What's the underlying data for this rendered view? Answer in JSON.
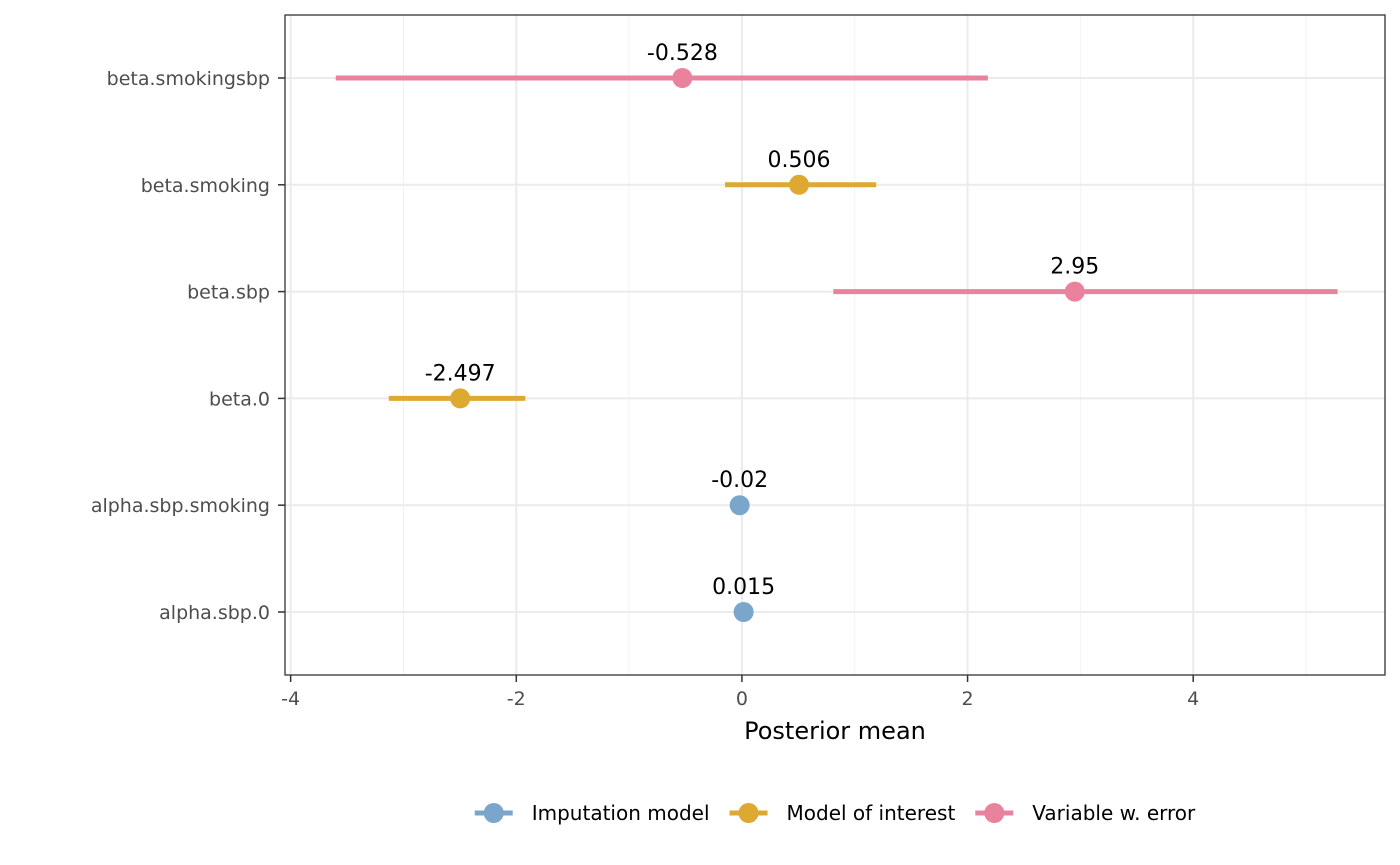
{
  "chart_data": {
    "type": "forest",
    "xlabel": "Posterior mean",
    "ylabel": "",
    "xlim": [
      -4.05,
      5.7
    ],
    "x_ticks": [
      -4,
      -2,
      0,
      2,
      4
    ],
    "x_tick_labels": [
      "-4",
      "-2",
      "0",
      "2",
      "4"
    ],
    "grid": true,
    "legend_position": "bottom",
    "categories": [
      "beta.smokingsbp",
      "beta.smoking",
      "beta.sbp",
      "beta.0",
      "alpha.sbp.smoking",
      "alpha.sbp.0"
    ],
    "series": [
      {
        "name": "Imputation model",
        "color": "#7BA6CB"
      },
      {
        "name": "Model of interest",
        "color": "#DDA932"
      },
      {
        "name": "Variable w. error",
        "color": "#E9839D"
      }
    ],
    "points": [
      {
        "parameter": "beta.smokingsbp",
        "group": "Variable w. error",
        "mean": -0.528,
        "label": "-0.528",
        "lower": -3.6,
        "upper": 2.18
      },
      {
        "parameter": "beta.smoking",
        "group": "Model of interest",
        "mean": 0.506,
        "label": "0.506",
        "lower": -0.15,
        "upper": 1.19
      },
      {
        "parameter": "beta.sbp",
        "group": "Variable w. error",
        "mean": 2.95,
        "label": "2.95",
        "lower": 0.81,
        "upper": 5.28
      },
      {
        "parameter": "beta.0",
        "group": "Model of interest",
        "mean": -2.497,
        "label": "-2.497",
        "lower": -3.13,
        "upper": -1.92
      },
      {
        "parameter": "alpha.sbp.smoking",
        "group": "Imputation model",
        "mean": -0.02,
        "label": "-0.02",
        "lower": -0.02,
        "upper": -0.02
      },
      {
        "parameter": "alpha.sbp.0",
        "group": "Imputation model",
        "mean": 0.015,
        "label": "0.015",
        "lower": 0.015,
        "upper": 0.015
      }
    ]
  }
}
